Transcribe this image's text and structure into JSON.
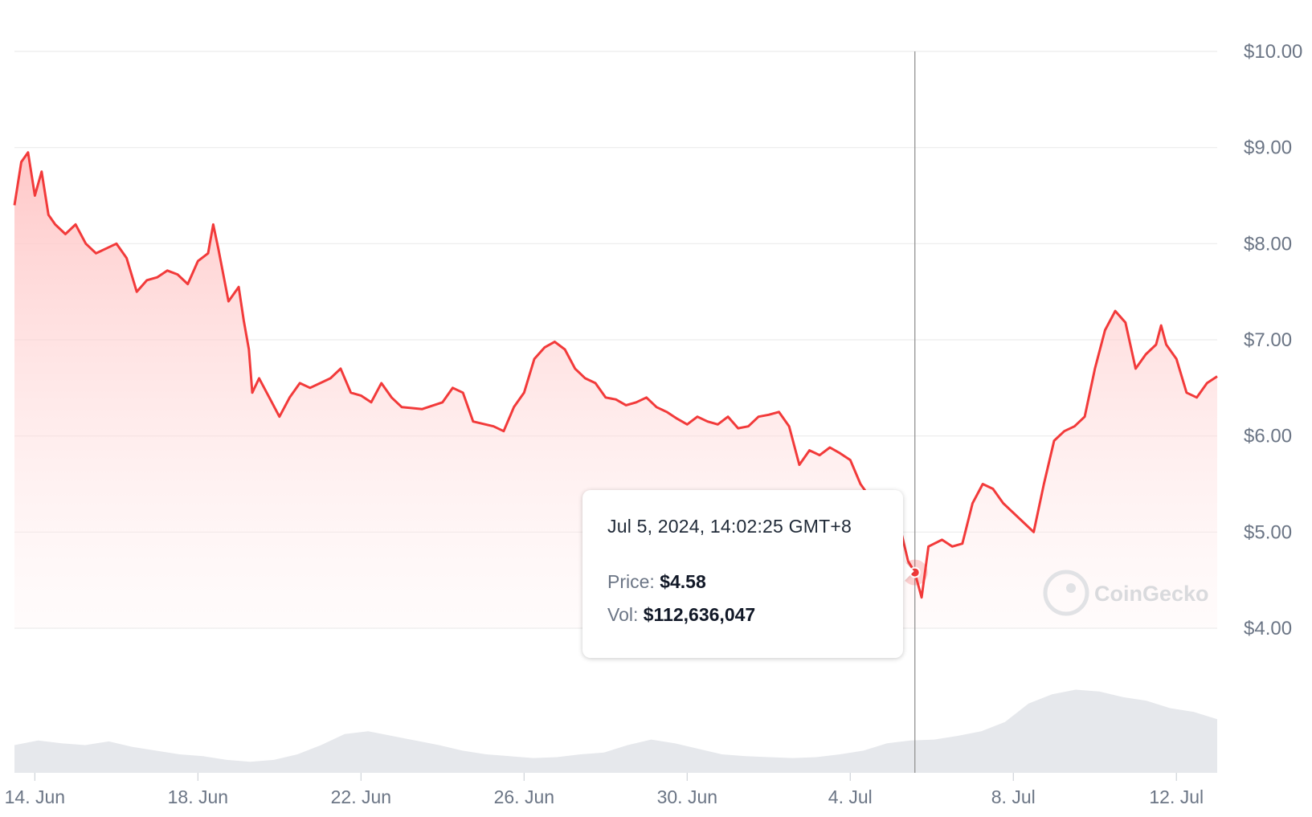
{
  "chart_data": {
    "type": "area",
    "ylim": [
      4.0,
      10.0
    ],
    "y_ticks": [
      "$10.00",
      "$9.00",
      "$8.00",
      "$7.00",
      "$6.00",
      "$5.00",
      "$4.00"
    ],
    "y_tick_values": [
      10,
      9,
      8,
      7,
      6,
      5,
      4
    ],
    "x_ticks": [
      "14. Jun",
      "18. Jun",
      "22. Jun",
      "26. Jun",
      "30. Jun",
      "4. Jul",
      "8. Jul",
      "12. Jul"
    ],
    "x_tick_dates": [
      "2024-06-14",
      "2024-06-18",
      "2024-06-22",
      "2024-06-26",
      "2024-06-30",
      "2024-07-04",
      "2024-07-08",
      "2024-07-12"
    ],
    "x_range": [
      "2024-06-13T12:00",
      "2024-07-13T00:00"
    ],
    "grid": true,
    "colors": {
      "line": "#f23a3a",
      "area_top": "#ffc8c8",
      "volume": "#e6e8ec",
      "crosshair": "#9a9a9a"
    },
    "series": [
      {
        "values": [
          [
            "2024-06-13T12:00",
            8.4
          ],
          [
            "2024-06-13T16:00",
            8.85
          ],
          [
            "2024-06-13T20:00",
            8.95
          ],
          [
            "2024-06-14T00:00",
            8.5
          ],
          [
            "2024-06-14T04:00",
            8.75
          ],
          [
            "2024-06-14T08:00",
            8.3
          ],
          [
            "2024-06-14T12:00",
            8.2
          ],
          [
            "2024-06-14T18:00",
            8.1
          ],
          [
            "2024-06-15T00:00",
            8.2
          ],
          [
            "2024-06-15T06:00",
            8.0
          ],
          [
            "2024-06-15T12:00",
            7.9
          ],
          [
            "2024-06-15T18:00",
            7.95
          ],
          [
            "2024-06-16T00:00",
            8.0
          ],
          [
            "2024-06-16T06:00",
            7.85
          ],
          [
            "2024-06-16T12:00",
            7.5
          ],
          [
            "2024-06-16T18:00",
            7.62
          ],
          [
            "2024-06-17T00:00",
            7.65
          ],
          [
            "2024-06-17T06:00",
            7.72
          ],
          [
            "2024-06-17T12:00",
            7.68
          ],
          [
            "2024-06-17T18:00",
            7.58
          ],
          [
            "2024-06-18T00:00",
            7.82
          ],
          [
            "2024-06-18T06:00",
            7.9
          ],
          [
            "2024-06-18T09:00",
            8.2
          ],
          [
            "2024-06-18T12:00",
            7.95
          ],
          [
            "2024-06-18T18:00",
            7.4
          ],
          [
            "2024-06-19T00:00",
            7.55
          ],
          [
            "2024-06-19T03:00",
            7.2
          ],
          [
            "2024-06-19T06:00",
            6.9
          ],
          [
            "2024-06-19T08:00",
            6.45
          ],
          [
            "2024-06-19T12:00",
            6.6
          ],
          [
            "2024-06-19T18:00",
            6.4
          ],
          [
            "2024-06-20T00:00",
            6.2
          ],
          [
            "2024-06-20T06:00",
            6.4
          ],
          [
            "2024-06-20T12:00",
            6.55
          ],
          [
            "2024-06-20T18:00",
            6.5
          ],
          [
            "2024-06-21T00:00",
            6.55
          ],
          [
            "2024-06-21T06:00",
            6.6
          ],
          [
            "2024-06-21T12:00",
            6.7
          ],
          [
            "2024-06-21T18:00",
            6.45
          ],
          [
            "2024-06-22T00:00",
            6.42
          ],
          [
            "2024-06-22T06:00",
            6.35
          ],
          [
            "2024-06-22T12:00",
            6.55
          ],
          [
            "2024-06-22T18:00",
            6.4
          ],
          [
            "2024-06-23T00:00",
            6.3
          ],
          [
            "2024-06-23T12:00",
            6.28
          ],
          [
            "2024-06-24T00:00",
            6.35
          ],
          [
            "2024-06-24T06:00",
            6.5
          ],
          [
            "2024-06-24T12:00",
            6.45
          ],
          [
            "2024-06-24T18:00",
            6.15
          ],
          [
            "2024-06-25T06:00",
            6.1
          ],
          [
            "2024-06-25T12:00",
            6.05
          ],
          [
            "2024-06-25T18:00",
            6.3
          ],
          [
            "2024-06-26T00:00",
            6.45
          ],
          [
            "2024-06-26T06:00",
            6.8
          ],
          [
            "2024-06-26T12:00",
            6.92
          ],
          [
            "2024-06-26T18:00",
            6.98
          ],
          [
            "2024-06-27T00:00",
            6.9
          ],
          [
            "2024-06-27T06:00",
            6.7
          ],
          [
            "2024-06-27T12:00",
            6.6
          ],
          [
            "2024-06-27T18:00",
            6.55
          ],
          [
            "2024-06-28T00:00",
            6.4
          ],
          [
            "2024-06-28T06:00",
            6.38
          ],
          [
            "2024-06-28T12:00",
            6.32
          ],
          [
            "2024-06-28T18:00",
            6.35
          ],
          [
            "2024-06-29T00:00",
            6.4
          ],
          [
            "2024-06-29T06:00",
            6.3
          ],
          [
            "2024-06-29T12:00",
            6.25
          ],
          [
            "2024-06-29T18:00",
            6.18
          ],
          [
            "2024-06-30T00:00",
            6.12
          ],
          [
            "2024-06-30T06:00",
            6.2
          ],
          [
            "2024-06-30T12:00",
            6.15
          ],
          [
            "2024-06-30T18:00",
            6.12
          ],
          [
            "2024-07-01T00:00",
            6.2
          ],
          [
            "2024-07-01T06:00",
            6.08
          ],
          [
            "2024-07-01T12:00",
            6.1
          ],
          [
            "2024-07-01T18:00",
            6.2
          ],
          [
            "2024-07-02T00:00",
            6.22
          ],
          [
            "2024-07-02T06:00",
            6.25
          ],
          [
            "2024-07-02T12:00",
            6.1
          ],
          [
            "2024-07-02T18:00",
            5.7
          ],
          [
            "2024-07-03T00:00",
            5.85
          ],
          [
            "2024-07-03T06:00",
            5.8
          ],
          [
            "2024-07-03T12:00",
            5.88
          ],
          [
            "2024-07-03T18:00",
            5.82
          ],
          [
            "2024-07-04T00:00",
            5.75
          ],
          [
            "2024-07-04T06:00",
            5.5
          ],
          [
            "2024-07-04T12:00",
            5.35
          ],
          [
            "2024-07-04T18:00",
            5.15
          ],
          [
            "2024-07-05T00:00",
            4.95
          ],
          [
            "2024-07-05T06:00",
            5.0
          ],
          [
            "2024-07-05T10:00",
            4.7
          ],
          [
            "2024-07-05T14:00",
            4.58
          ],
          [
            "2024-07-05T18:00",
            4.32
          ],
          [
            "2024-07-05T22:00",
            4.85
          ],
          [
            "2024-07-06T06:00",
            4.92
          ],
          [
            "2024-07-06T12:00",
            4.85
          ],
          [
            "2024-07-06T18:00",
            4.88
          ],
          [
            "2024-07-07T00:00",
            5.3
          ],
          [
            "2024-07-07T06:00",
            5.5
          ],
          [
            "2024-07-07T12:00",
            5.45
          ],
          [
            "2024-07-07T18:00",
            5.3
          ],
          [
            "2024-07-08T00:00",
            5.2
          ],
          [
            "2024-07-08T06:00",
            5.1
          ],
          [
            "2024-07-08T12:00",
            5.0
          ],
          [
            "2024-07-08T18:00",
            5.5
          ],
          [
            "2024-07-09T00:00",
            5.95
          ],
          [
            "2024-07-09T06:00",
            6.05
          ],
          [
            "2024-07-09T12:00",
            6.1
          ],
          [
            "2024-07-09T18:00",
            6.2
          ],
          [
            "2024-07-10T00:00",
            6.7
          ],
          [
            "2024-07-10T06:00",
            7.1
          ],
          [
            "2024-07-10T12:00",
            7.3
          ],
          [
            "2024-07-10T18:00",
            7.18
          ],
          [
            "2024-07-11T00:00",
            6.7
          ],
          [
            "2024-07-11T06:00",
            6.85
          ],
          [
            "2024-07-11T12:00",
            6.95
          ],
          [
            "2024-07-11T15:00",
            7.15
          ],
          [
            "2024-07-11T18:00",
            6.95
          ],
          [
            "2024-07-12T00:00",
            6.8
          ],
          [
            "2024-07-12T06:00",
            6.45
          ],
          [
            "2024-07-12T12:00",
            6.4
          ],
          [
            "2024-07-12T18:00",
            6.55
          ],
          [
            "2024-07-13T00:00",
            6.62
          ]
        ]
      }
    ],
    "volume_relative": [
      0.3,
      0.35,
      0.32,
      0.3,
      0.34,
      0.28,
      0.24,
      0.2,
      0.18,
      0.14,
      0.12,
      0.14,
      0.2,
      0.3,
      0.42,
      0.45,
      0.4,
      0.35,
      0.3,
      0.24,
      0.2,
      0.18,
      0.16,
      0.17,
      0.2,
      0.22,
      0.3,
      0.36,
      0.32,
      0.26,
      0.2,
      0.18,
      0.17,
      0.16,
      0.17,
      0.2,
      0.24,
      0.32,
      0.35,
      0.36,
      0.4,
      0.45,
      0.55,
      0.75,
      0.85,
      0.9,
      0.88,
      0.82,
      0.78,
      0.7,
      0.66,
      0.58
    ]
  },
  "tooltip": {
    "date": "Jul 5, 2024, 14:02:25 GMT+8",
    "price_label": "Price:",
    "price_value": "$4.58",
    "vol_label": "Vol:",
    "vol_value": "$112,636,047",
    "hover_time": "2024-07-05T14:02",
    "hover_price": 4.58
  },
  "watermark": {
    "text": "CoinGecko"
  }
}
